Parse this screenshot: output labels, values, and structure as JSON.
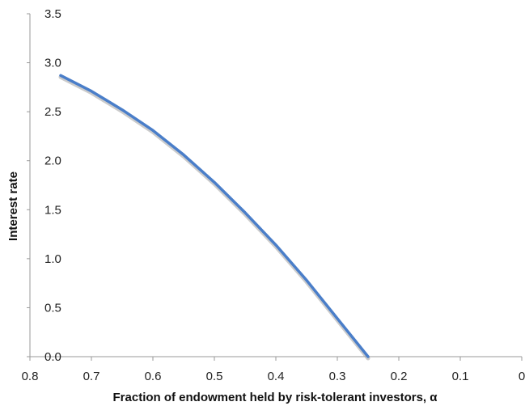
{
  "chart_data": {
    "type": "line",
    "title": "",
    "xlabel": "Fraction of endowment held by risk-tolerant investors, α",
    "ylabel": "Interest rate",
    "xlim": [
      0.8,
      0
    ],
    "ylim": [
      0,
      3.5
    ],
    "x_reversed": true,
    "x_ticks": [
      0.8,
      0.7,
      0.6,
      0.5,
      0.4,
      0.3,
      0.2,
      0.1,
      0
    ],
    "x_tick_labels": [
      "0.8",
      "0.7",
      "0.6",
      "0.5",
      "0.4",
      "0.3",
      "0.2",
      "0.1",
      "0"
    ],
    "y_ticks": [
      0,
      0.5,
      1,
      1.5,
      2,
      2.5,
      3,
      3.5
    ],
    "y_tick_labels": [
      "0.0",
      "0.5",
      "1.0",
      "1.5",
      "2.0",
      "2.5",
      "3.0",
      "3.5"
    ],
    "grid": false,
    "series": [
      {
        "color": "#4a7ec9",
        "x": [
          0.75,
          0.7,
          0.65,
          0.6,
          0.55,
          0.5,
          0.45,
          0.4,
          0.35,
          0.3,
          0.25
        ],
        "y": [
          2.87,
          2.71,
          2.52,
          2.31,
          2.06,
          1.78,
          1.47,
          1.14,
          0.78,
          0.39,
          0.0
        ]
      }
    ]
  }
}
